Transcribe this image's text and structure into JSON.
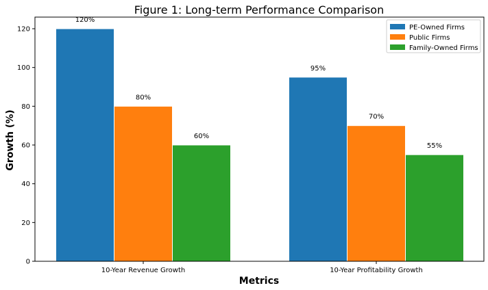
{
  "chart_data": {
    "type": "bar",
    "title": "Figure 1: Long-term Performance Comparison",
    "xlabel": "Metrics",
    "ylabel": "Growth (%)",
    "categories": [
      "10-Year Revenue Growth",
      "10-Year Profitability Growth"
    ],
    "series": [
      {
        "name": "PE-Owned Firms",
        "values": [
          120,
          95
        ],
        "labels": [
          "120%",
          "95%"
        ],
        "color": "#1f77b4"
      },
      {
        "name": "Public Firms",
        "values": [
          80,
          70
        ],
        "labels": [
          "80%",
          "70%"
        ],
        "color": "#ff7f0e"
      },
      {
        "name": "Family-Owned Firms",
        "values": [
          60,
          55
        ],
        "labels": [
          "60%",
          "55%"
        ],
        "color": "#2ca02c"
      }
    ],
    "ylim": [
      0,
      126
    ],
    "yticks": [
      "0",
      "20",
      "40",
      "60",
      "80",
      "100",
      "120"
    ],
    "grid": false,
    "legend_position": "top-right"
  }
}
